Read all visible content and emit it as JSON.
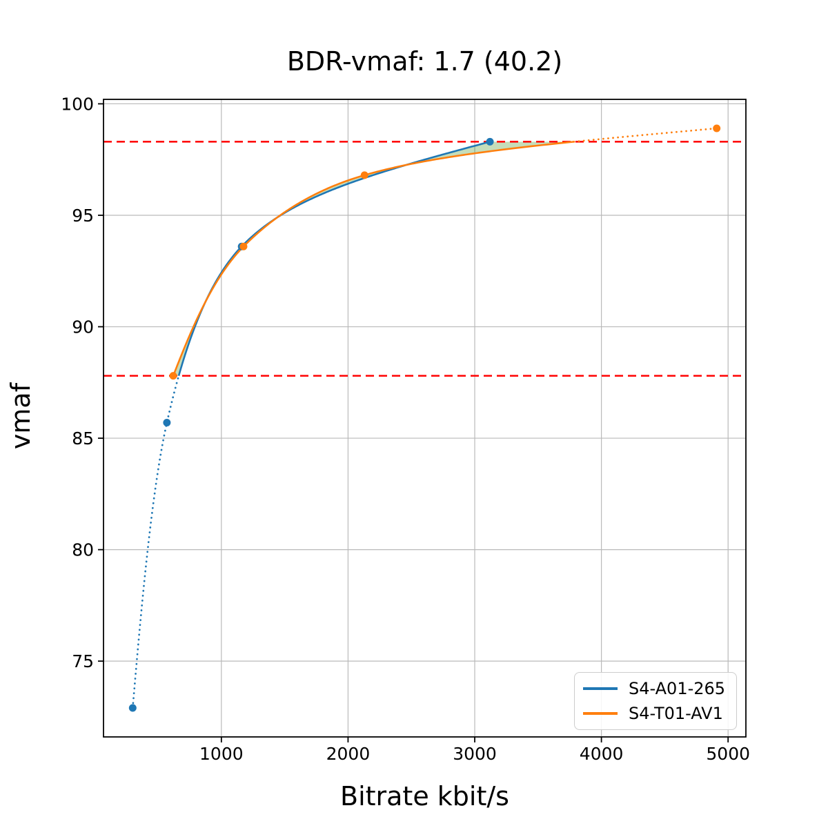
{
  "chart_data": {
    "type": "line",
    "title": "BDR-vmaf: 1.7 (40.2)",
    "xlabel": "Bitrate kbit/s",
    "ylabel": "vmaf",
    "xlim": [
      69.5,
      5140.5
    ],
    "ylim": [
      71.6,
      100.2
    ],
    "x_ticks": [
      1000,
      2000,
      3000,
      4000,
      5000
    ],
    "y_ticks": [
      75,
      80,
      85,
      90,
      95,
      100
    ],
    "grid": true,
    "grid_color": "#b9b9b9",
    "series": [
      {
        "name": "S4-A01-265",
        "color": "#1f77b4",
        "marker": "circle",
        "x": [
          300,
          570,
          1160,
          3120
        ],
        "y": [
          72.9,
          85.7,
          93.6,
          98.3
        ]
      },
      {
        "name": "S4-T01-AV1",
        "color": "#ff7f0e",
        "marker": "circle",
        "x": [
          620,
          1175,
          2130,
          4910
        ],
        "y": [
          87.8,
          93.6,
          96.8,
          98.9
        ]
      }
    ],
    "ref_lines": {
      "values": [
        87.8,
        98.3
      ],
      "color": "#ff0000",
      "style": "dashed",
      "orientation": "horizontal"
    },
    "fill_between": {
      "color": "#3e8d19",
      "opacity": 0.3
    },
    "legend": {
      "position": "lower right"
    },
    "line_styles": {
      "overlap_region": "solid",
      "outside_overlap": "dotted"
    }
  }
}
